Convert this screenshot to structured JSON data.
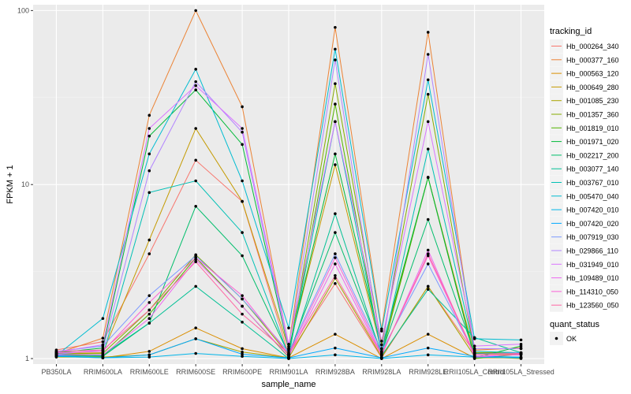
{
  "chart_data": {
    "type": "line",
    "xlabel": "sample_name",
    "ylabel": "FPKM + 1",
    "y_scale": "log10",
    "ylim": [
      0.93,
      108
    ],
    "y_ticks": [
      {
        "value": 1,
        "label": "1"
      },
      {
        "value": 10,
        "label": "10"
      },
      {
        "value": 100,
        "label": "100"
      }
    ],
    "grid": true,
    "background": "#ebebeb",
    "legend_position": "right",
    "categories": [
      "PB350LA",
      "RRIM600LA",
      "RRIM600LE",
      "RRIM600SE",
      "RRIM600PE",
      "RRIM901LA",
      "RRIM928BA",
      "RRIM928LA",
      "RRIM928LE",
      "RRII105LA_Control",
      "RRII105LA_Stressed"
    ],
    "legend_title": "tracking_id",
    "series": [
      {
        "name": "Hb_000264_340",
        "color": "#F8766D",
        "values": [
          1.12,
          1.25,
          4.0,
          13.8,
          8.0,
          1.05,
          2.7,
          1.01,
          2.6,
          1.08,
          1.08
        ]
      },
      {
        "name": "Hb_000377_160",
        "color": "#EB8335",
        "values": [
          1.07,
          1.31,
          25.0,
          100.0,
          28.0,
          1.17,
          80.0,
          1.48,
          75.0,
          1.12,
          1.15
        ]
      },
      {
        "name": "Hb_000563_120",
        "color": "#DA8E00",
        "values": [
          1.03,
          1.01,
          1.1,
          1.5,
          1.14,
          1.01,
          1.38,
          1.0,
          1.38,
          1.01,
          1.01
        ]
      },
      {
        "name": "Hb_000649_280",
        "color": "#C49A00",
        "values": [
          1.07,
          1.08,
          4.8,
          21.0,
          8.0,
          1.14,
          13.0,
          1.1,
          11.0,
          1.06,
          1.06
        ]
      },
      {
        "name": "Hb_001085_230",
        "color": "#A9A400",
        "values": [
          1.02,
          1.02,
          1.05,
          1.3,
          1.09,
          1.01,
          2.9,
          1.02,
          2.6,
          1.03,
          1.0
        ]
      },
      {
        "name": "Hb_001357_360",
        "color": "#86AC00",
        "values": [
          1.06,
          1.07,
          1.9,
          3.95,
          2.2,
          1.05,
          38.0,
          1.2,
          33.0,
          1.08,
          1.08
        ]
      },
      {
        "name": "Hb_001819_010",
        "color": "#53B400",
        "values": [
          1.05,
          1.03,
          1.8,
          3.8,
          2.0,
          1.02,
          29.0,
          1.05,
          11.0,
          1.0,
          1.06
        ]
      },
      {
        "name": "Hb_001971_020",
        "color": "#00BA38",
        "values": [
          1.08,
          1.15,
          19.0,
          35.0,
          17.0,
          1.12,
          15.0,
          1.14,
          11.0,
          1.01,
          1.18
        ]
      },
      {
        "name": "Hb_002217_200",
        "color": "#00BE6B",
        "values": [
          1.04,
          1.03,
          1.6,
          7.5,
          3.9,
          1.06,
          5.3,
          1.08,
          6.3,
          1.07,
          1.07
        ]
      },
      {
        "name": "Hb_003077_140",
        "color": "#00C094",
        "values": [
          1.05,
          1.05,
          1.6,
          2.6,
          1.62,
          1.0,
          6.8,
          1.04,
          2.5,
          1.32,
          1.08
        ]
      },
      {
        "name": "Hb_003767_010",
        "color": "#00C0B5",
        "values": [
          1.06,
          1.04,
          9.0,
          10.5,
          5.3,
          1.04,
          23.0,
          1.06,
          16.0,
          1.1,
          1.08
        ]
      },
      {
        "name": "Hb_005470_040",
        "color": "#00BCD1",
        "values": [
          1.04,
          1.7,
          15.0,
          46.0,
          10.5,
          1.5,
          60.0,
          1.44,
          40.0,
          1.3,
          1.28
        ]
      },
      {
        "name": "Hb_007420_010",
        "color": "#00B5E9",
        "values": [
          1.03,
          1.01,
          1.02,
          1.07,
          1.03,
          1.0,
          1.05,
          1.0,
          1.05,
          1.02,
          1.01
        ]
      },
      {
        "name": "Hb_007420_020",
        "color": "#00A9FF",
        "values": [
          1.04,
          1.01,
          1.05,
          1.3,
          1.06,
          1.01,
          1.15,
          1.01,
          1.15,
          1.03,
          1.02
        ]
      },
      {
        "name": "Hb_007919_030",
        "color": "#7C99FF",
        "values": [
          1.1,
          1.18,
          2.3,
          3.9,
          2.2,
          1.09,
          4.0,
          1.1,
          3.5,
          1.06,
          1.08
        ]
      },
      {
        "name": "Hb_029866_110",
        "color": "#B385FF",
        "values": [
          1.06,
          1.12,
          12.0,
          39.0,
          20.0,
          1.14,
          52.0,
          1.08,
          56.0,
          1.14,
          1.14
        ]
      },
      {
        "name": "Hb_031949_010",
        "color": "#D975FF",
        "values": [
          1.09,
          1.2,
          21.0,
          37.0,
          21.0,
          1.21,
          23.0,
          1.26,
          23.0,
          1.18,
          1.21
        ]
      },
      {
        "name": "Hb_109489_010",
        "color": "#EE67EF",
        "values": [
          1.05,
          1.05,
          1.7,
          3.7,
          2.0,
          1.03,
          3.5,
          1.04,
          4.2,
          1.02,
          1.06
        ]
      },
      {
        "name": "Hb_114310_050",
        "color": "#FB61D7",
        "values": [
          1.08,
          1.1,
          2.1,
          3.8,
          2.3,
          1.06,
          3.8,
          1.06,
          3.9,
          1.04,
          1.05
        ]
      },
      {
        "name": "Hb_123560_050",
        "color": "#FF67A4",
        "values": [
          1.1,
          1.12,
          1.9,
          3.6,
          1.8,
          1.07,
          3.0,
          1.05,
          4.0,
          1.06,
          1.07
        ]
      }
    ],
    "point_legend": {
      "title": "quant_status",
      "items": [
        {
          "label": "OK",
          "color": "#000000"
        }
      ]
    }
  }
}
